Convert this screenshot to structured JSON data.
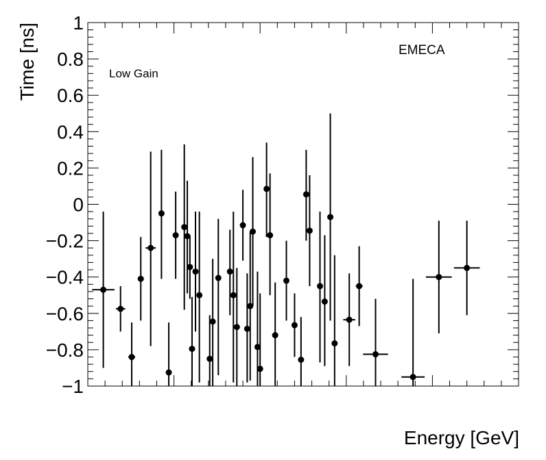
{
  "chart_data": {
    "type": "scatter",
    "title": "",
    "xlabel": "Energy [GeV]",
    "ylabel": "Time [ns]",
    "ylim": [
      -1,
      1
    ],
    "xlim": [
      0,
      1
    ],
    "x_ticks_labeled": false,
    "yticks": [
      "−1",
      "−0.8",
      "−0.6",
      "−0.4",
      "−0.2",
      "0",
      "0.2",
      "0.4",
      "0.6",
      "0.8",
      "1"
    ],
    "ytick_values": [
      -1,
      -0.8,
      -0.6,
      -0.4,
      -0.2,
      0,
      0.2,
      0.4,
      0.6,
      0.8,
      1
    ],
    "annotations": {
      "region": "EMECA",
      "gain": "Low Gain"
    },
    "series": [
      {
        "name": "Low Gain",
        "marker_color": "#000000",
        "points": [
          {
            "x": 0.036,
            "xerr": 0.026,
            "y": -0.47,
            "ylo": -0.9,
            "yhi": -0.04
          },
          {
            "x": 0.076,
            "xerr": 0.011,
            "y": -0.575,
            "ylo": -0.7,
            "yhi": -0.45
          },
          {
            "x": 0.102,
            "xerr": 0.008,
            "y": -0.84,
            "ylo": -1.0,
            "yhi": -0.65
          },
          {
            "x": 0.123,
            "xerr": 0.007,
            "y": -0.41,
            "ylo": -0.64,
            "yhi": -0.18
          },
          {
            "x": 0.146,
            "xerr": 0.012,
            "y": -0.24,
            "ylo": -0.78,
            "yhi": 0.29
          },
          {
            "x": 0.171,
            "xerr": 0.007,
            "y": -0.05,
            "ylo": -0.41,
            "yhi": 0.3
          },
          {
            "x": 0.188,
            "xerr": 0.004,
            "y": -0.925,
            "ylo": -1.0,
            "yhi": -0.65
          },
          {
            "x": 0.204,
            "xerr": 0.004,
            "y": -0.17,
            "ylo": -0.41,
            "yhi": 0.07
          },
          {
            "x": 0.224,
            "xerr": 0.003,
            "y": -0.125,
            "ylo": -0.58,
            "yhi": 0.33
          },
          {
            "x": 0.231,
            "xerr": 0.003,
            "y": -0.175,
            "ylo": -0.49,
            "yhi": 0.13
          },
          {
            "x": 0.237,
            "xerr": 0.003,
            "y": -0.345,
            "ylo": -0.52,
            "yhi": -0.17
          },
          {
            "x": 0.242,
            "xerr": 0.003,
            "y": -0.795,
            "ylo": -1.0,
            "yhi": -0.51
          },
          {
            "x": 0.25,
            "xerr": 0.003,
            "y": -0.37,
            "ylo": -0.7,
            "yhi": -0.04
          },
          {
            "x": 0.259,
            "xerr": 0.003,
            "y": -0.5,
            "ylo": -0.98,
            "yhi": -0.04
          },
          {
            "x": 0.283,
            "xerr": 0.003,
            "y": -0.85,
            "ylo": -1.0,
            "yhi": -0.61
          },
          {
            "x": 0.29,
            "xerr": 0.003,
            "y": -0.645,
            "ylo": -1.0,
            "yhi": -0.3
          },
          {
            "x": 0.303,
            "xerr": 0.003,
            "y": -0.405,
            "ylo": -0.94,
            "yhi": -0.08
          },
          {
            "x": 0.33,
            "xerr": 0.003,
            "y": -0.37,
            "ylo": -0.61,
            "yhi": -0.14
          },
          {
            "x": 0.338,
            "xerr": 0.003,
            "y": -0.5,
            "ylo": -0.98,
            "yhi": -0.04
          },
          {
            "x": 0.346,
            "xerr": 0.003,
            "y": -0.675,
            "ylo": -1.0,
            "yhi": -0.35
          },
          {
            "x": 0.36,
            "xerr": 0.003,
            "y": -0.115,
            "ylo": -0.31,
            "yhi": 0.08
          },
          {
            "x": 0.37,
            "xerr": 0.003,
            "y": -0.685,
            "ylo": -0.98,
            "yhi": -0.38
          },
          {
            "x": 0.377,
            "xerr": 0.003,
            "y": -0.56,
            "ylo": -0.97,
            "yhi": -0.15
          },
          {
            "x": 0.383,
            "xerr": 0.003,
            "y": -0.15,
            "ylo": -0.56,
            "yhi": 0.26
          },
          {
            "x": 0.394,
            "xerr": 0.003,
            "y": -0.785,
            "ylo": -1.0,
            "yhi": -0.37
          },
          {
            "x": 0.4,
            "xerr": 0.003,
            "y": -0.905,
            "ylo": -1.0,
            "yhi": -0.49
          },
          {
            "x": 0.415,
            "xerr": 0.003,
            "y": 0.085,
            "ylo": -0.18,
            "yhi": 0.34
          },
          {
            "x": 0.423,
            "xerr": 0.003,
            "y": -0.17,
            "ylo": -0.5,
            "yhi": 0.17
          },
          {
            "x": 0.435,
            "xerr": 0.003,
            "y": -0.72,
            "ylo": -1.0,
            "yhi": -0.43
          },
          {
            "x": 0.461,
            "xerr": 0.004,
            "y": -0.42,
            "ylo": -0.64,
            "yhi": -0.2
          },
          {
            "x": 0.48,
            "xerr": 0.005,
            "y": -0.665,
            "ylo": -0.84,
            "yhi": -0.49
          },
          {
            "x": 0.495,
            "xerr": 0.003,
            "y": -0.855,
            "ylo": -1.0,
            "yhi": -0.62
          },
          {
            "x": 0.507,
            "xerr": 0.003,
            "y": 0.055,
            "ylo": -0.2,
            "yhi": 0.3
          },
          {
            "x": 0.515,
            "xerr": 0.003,
            "y": -0.145,
            "ylo": -0.45,
            "yhi": 0.16
          },
          {
            "x": 0.539,
            "xerr": 0.003,
            "y": -0.45,
            "ylo": -0.87,
            "yhi": -0.04
          },
          {
            "x": 0.55,
            "xerr": 0.003,
            "y": -0.535,
            "ylo": -0.89,
            "yhi": -0.17
          },
          {
            "x": 0.563,
            "xerr": 0.004,
            "y": -0.07,
            "ylo": -0.64,
            "yhi": 0.5
          },
          {
            "x": 0.573,
            "xerr": 0.004,
            "y": -0.765,
            "ylo": -1.0,
            "yhi": -0.28
          },
          {
            "x": 0.607,
            "xerr": 0.014,
            "y": -0.635,
            "ylo": -0.89,
            "yhi": -0.38
          },
          {
            "x": 0.63,
            "xerr": 0.008,
            "y": -0.45,
            "ylo": -0.67,
            "yhi": -0.23
          },
          {
            "x": 0.668,
            "xerr": 0.029,
            "y": -0.825,
            "ylo": -1.0,
            "yhi": -0.52
          },
          {
            "x": 0.755,
            "xerr": 0.027,
            "y": -0.95,
            "ylo": -1.0,
            "yhi": -0.41
          },
          {
            "x": 0.815,
            "xerr": 0.03,
            "y": -0.4,
            "ylo": -0.71,
            "yhi": -0.09
          },
          {
            "x": 0.88,
            "xerr": 0.03,
            "y": -0.35,
            "ylo": -0.61,
            "yhi": -0.09
          }
        ]
      }
    ]
  }
}
